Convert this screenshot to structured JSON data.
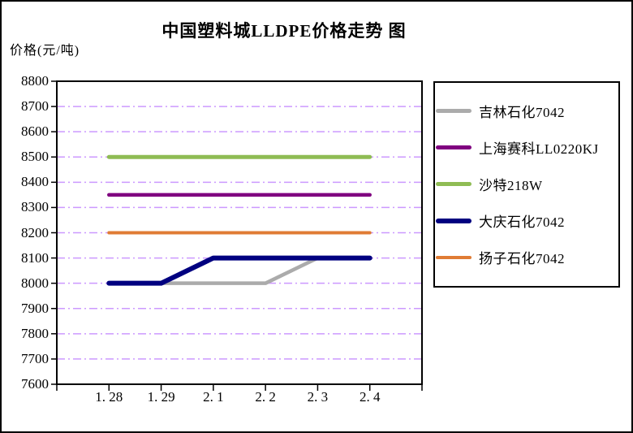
{
  "window": {
    "background": "#ffffff",
    "border_color": "#000000"
  },
  "title": "中国塑料城LLDPE价格走势 图",
  "y_axis_title": "价格(元/吨)",
  "chart_data": {
    "type": "line",
    "title": "中国塑料城LLDPE价格走势 图",
    "ylabel": "价格(元/吨)",
    "xlabel": "",
    "categories": [
      "1.28",
      "1.29",
      "2.1",
      "2.2",
      "2.3",
      "2.4"
    ],
    "x_tick_labels": [
      "1. 28",
      "1. 29",
      "2. 1",
      "2. 2",
      "2. 3",
      "2. 4"
    ],
    "ylim": [
      7600,
      8800
    ],
    "y_tick_step": 100,
    "y_tick_labels": [
      "8800",
      "8700",
      "8600",
      "8500",
      "8400",
      "8300",
      "8200",
      "8100",
      "8000",
      "7900",
      "7800",
      "7700",
      "7600"
    ],
    "grid": "horizontal",
    "gridline_style": "dash-dot",
    "gridline_color": "#CC99FF",
    "axis_color": "#000000",
    "legend_position": "right",
    "series": [
      {
        "name": "吉林石化7042",
        "color": "#ABABAB",
        "width": 4.5,
        "values": [
          8000,
          8000,
          8000,
          8000,
          8100,
          8100
        ]
      },
      {
        "name": "上海赛科LL0220KJ",
        "color": "#800080",
        "width": 4.5,
        "values": [
          8350,
          8350,
          8350,
          8350,
          8350,
          8350
        ]
      },
      {
        "name": "沙特218W",
        "color": "#8FBC54",
        "width": 5,
        "values": [
          8500,
          8500,
          8500,
          8500,
          8500,
          8500
        ]
      },
      {
        "name": "大庆石化7042",
        "color": "#000080",
        "width": 6,
        "values": [
          8000,
          8000,
          8100,
          8100,
          8100,
          8100
        ]
      },
      {
        "name": "扬子石化7042",
        "color": "#E07C35",
        "width": 4,
        "values": [
          8200,
          8200,
          8200,
          8200,
          8200,
          8200
        ]
      }
    ]
  }
}
